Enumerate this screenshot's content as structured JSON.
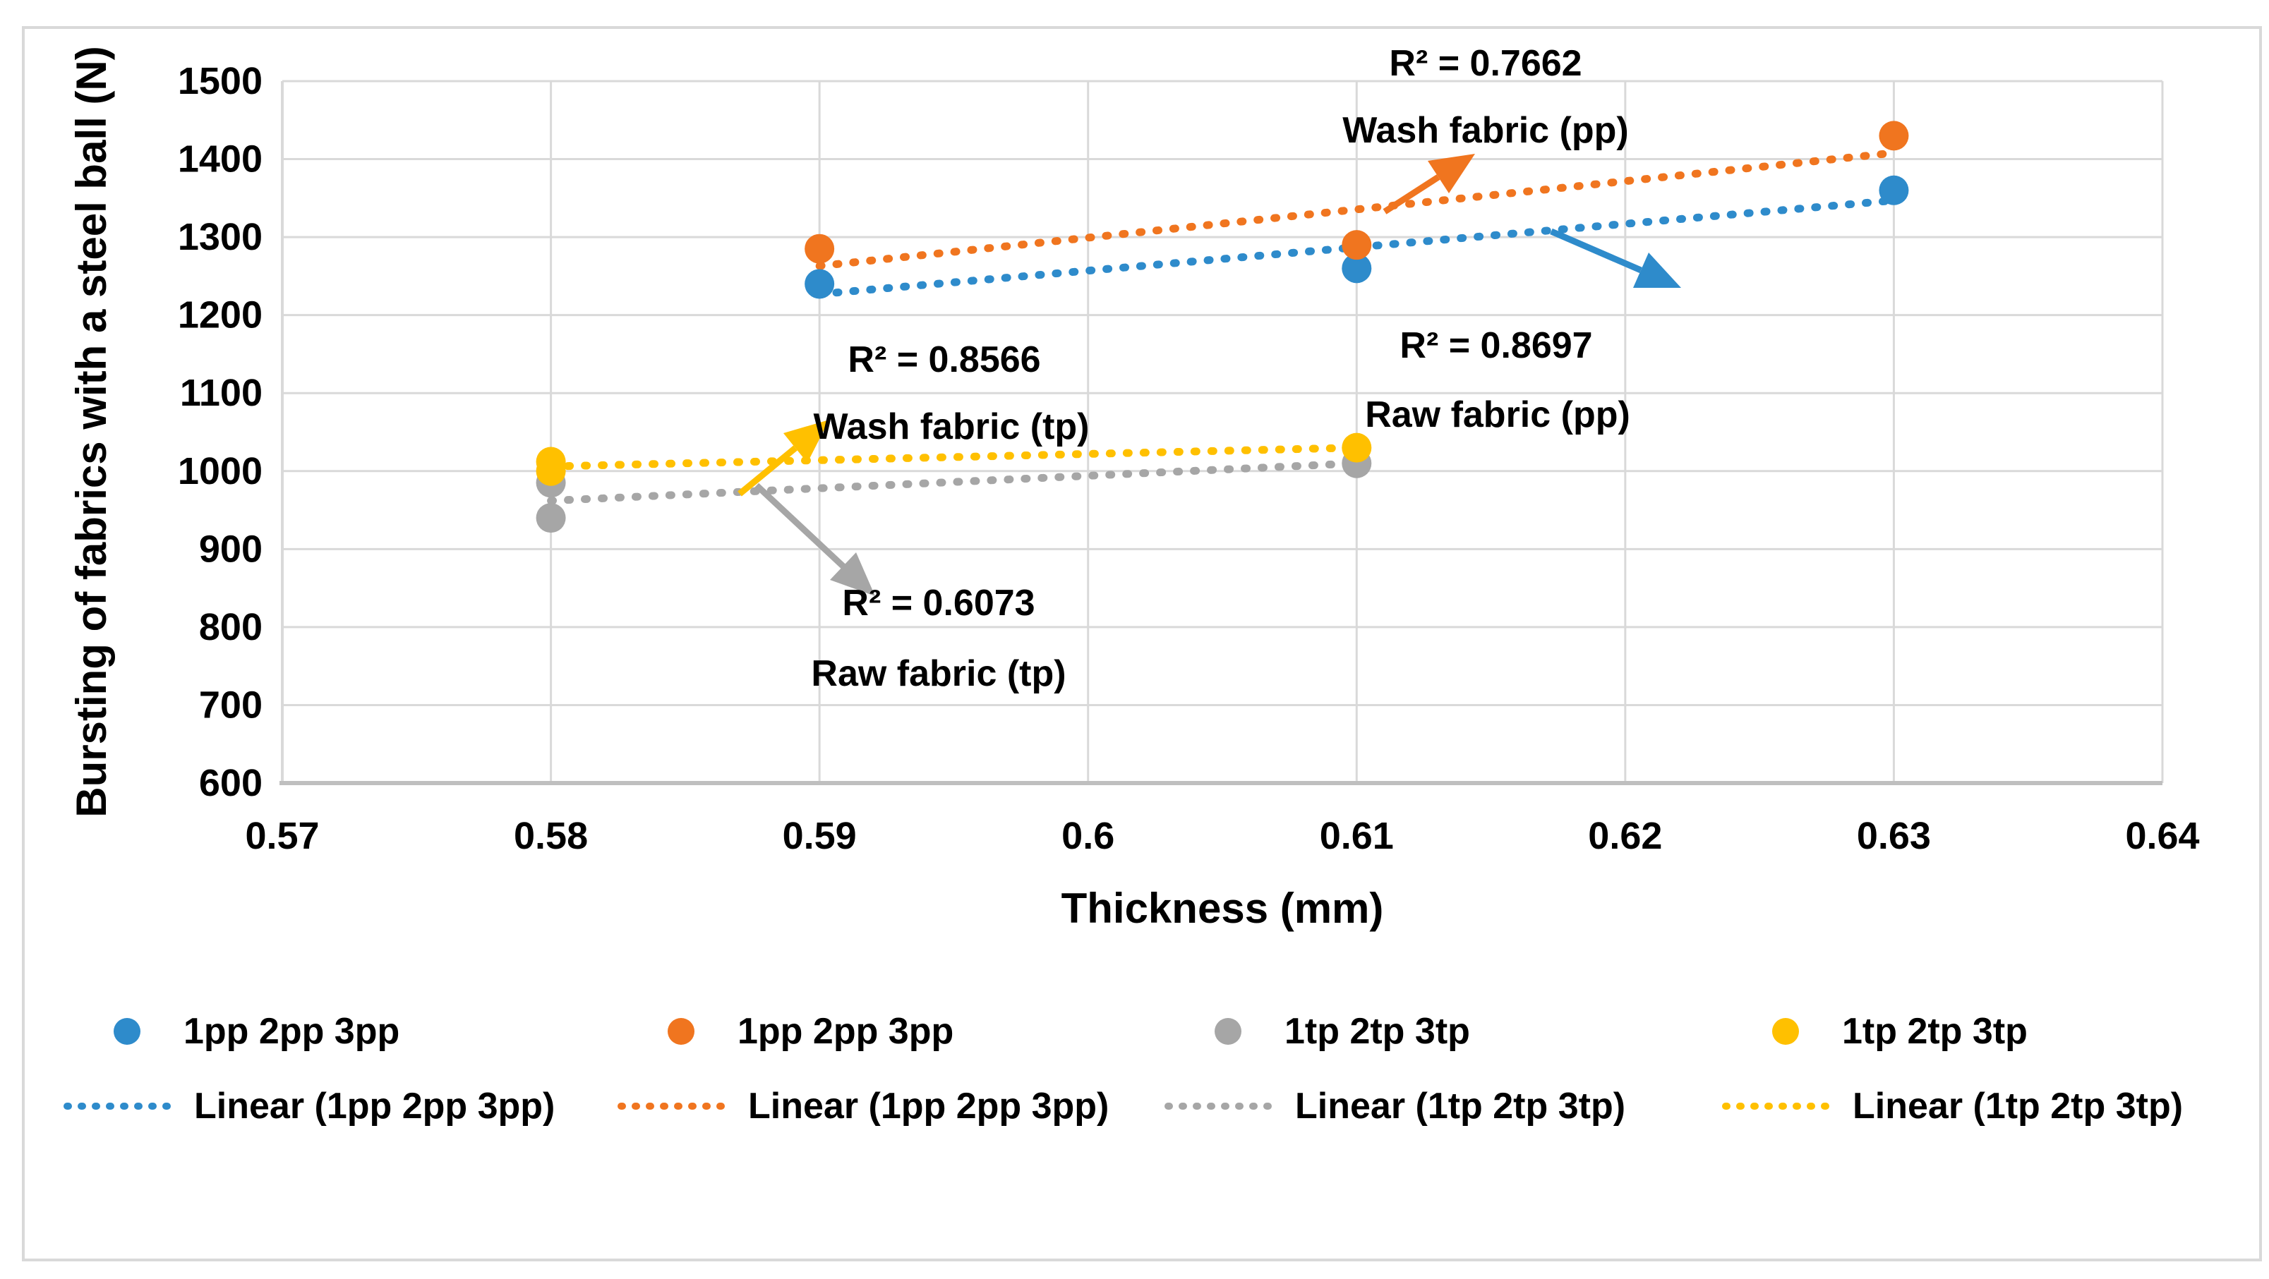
{
  "figure": {
    "background": "#FFFFFF",
    "border_color": "#D9D9D9",
    "gridline_color": "#D9D9D9",
    "axis_line_color": "#BFBFBF"
  },
  "chart_data": {
    "type": "scatter",
    "title": "",
    "xlabel": "Thickness (mm)",
    "ylabel": "Bursting of fabrics with a steel ball (N)",
    "xlim": [
      0.57,
      0.64
    ],
    "ylim": [
      600,
      1500
    ],
    "x_ticks": [
      0.57,
      0.58,
      0.59,
      0.6,
      0.61,
      0.62,
      0.63,
      0.64
    ],
    "x_tick_labels": [
      "0.57",
      "0.58",
      "0.59",
      "0.6",
      "0.61",
      "0.62",
      "0.63",
      "0.64"
    ],
    "y_ticks": [
      1500,
      1400,
      1300,
      1200,
      1100,
      1000,
      900,
      800,
      700,
      600
    ],
    "y_tick_labels": [
      "1500",
      "1400",
      "1300",
      "1200",
      "1100",
      "1000",
      "900",
      "800",
      "700",
      "600"
    ],
    "grid": true,
    "legend_position": "bottom",
    "series": [
      {
        "name": "1pp 2pp 3pp",
        "legend_linear": "Linear (1pp 2pp 3pp)",
        "annotation_label": "Raw fabric (pp)",
        "annotation_r2": "R² = 0.8697",
        "r_squared": 0.8697,
        "color": "#2E8BCB",
        "points": [
          [
            0.59,
            1240
          ],
          [
            0.61,
            1260
          ],
          [
            0.63,
            1360
          ]
        ],
        "trendline": {
          "x1": 0.59,
          "y1": 1227,
          "x2": 0.63,
          "y2": 1347
        }
      },
      {
        "name": "1pp 2pp 3pp",
        "legend_linear": "Linear (1pp 2pp 3pp)",
        "annotation_label": "Wash fabric (pp)",
        "annotation_r2": "R² = 0.7662",
        "r_squared": 0.7662,
        "color": "#F0751F",
        "points": [
          [
            0.59,
            1285
          ],
          [
            0.61,
            1290
          ],
          [
            0.63,
            1430
          ]
        ],
        "trendline": {
          "x1": 0.59,
          "y1": 1263,
          "x2": 0.63,
          "y2": 1408
        }
      },
      {
        "name": "1tp 2tp 3tp",
        "legend_linear": "Linear (1tp 2tp 3tp)",
        "annotation_label": "Raw fabric (tp)",
        "annotation_r2": "R² = 0.6073",
        "r_squared": 0.6073,
        "color": "#A6A6A6",
        "points": [
          [
            0.58,
            940
          ],
          [
            0.58,
            985
          ],
          [
            0.61,
            1010
          ]
        ],
        "trendline": {
          "x1": 0.58,
          "y1": 962,
          "x2": 0.61,
          "y2": 1010
        }
      },
      {
        "name": "1tp 2tp 3tp",
        "legend_linear": "Linear (1tp 2tp 3tp)",
        "annotation_label": "Wash fabric (tp)",
        "annotation_r2": "R² = 0.8566",
        "r_squared": 0.8566,
        "color": "#FFC000",
        "points": [
          [
            0.58,
            1000
          ],
          [
            0.58,
            1012
          ],
          [
            0.61,
            1030
          ]
        ],
        "trendline": {
          "x1": 0.58,
          "y1": 1006,
          "x2": 0.61,
          "y2": 1030
        }
      }
    ]
  },
  "annotations": {
    "pp_wash": {
      "r2": "R² = 0.7662",
      "label": "Wash fabric (pp)"
    },
    "pp_raw": {
      "r2": "R² = 0.8697",
      "label": "Raw fabric (pp)"
    },
    "tp_wash": {
      "r2": "R² = 0.8566",
      "label": "Wash fabric (tp)"
    },
    "tp_raw": {
      "r2": "R² = 0.6073",
      "label": "Raw fabric (tp)"
    }
  }
}
